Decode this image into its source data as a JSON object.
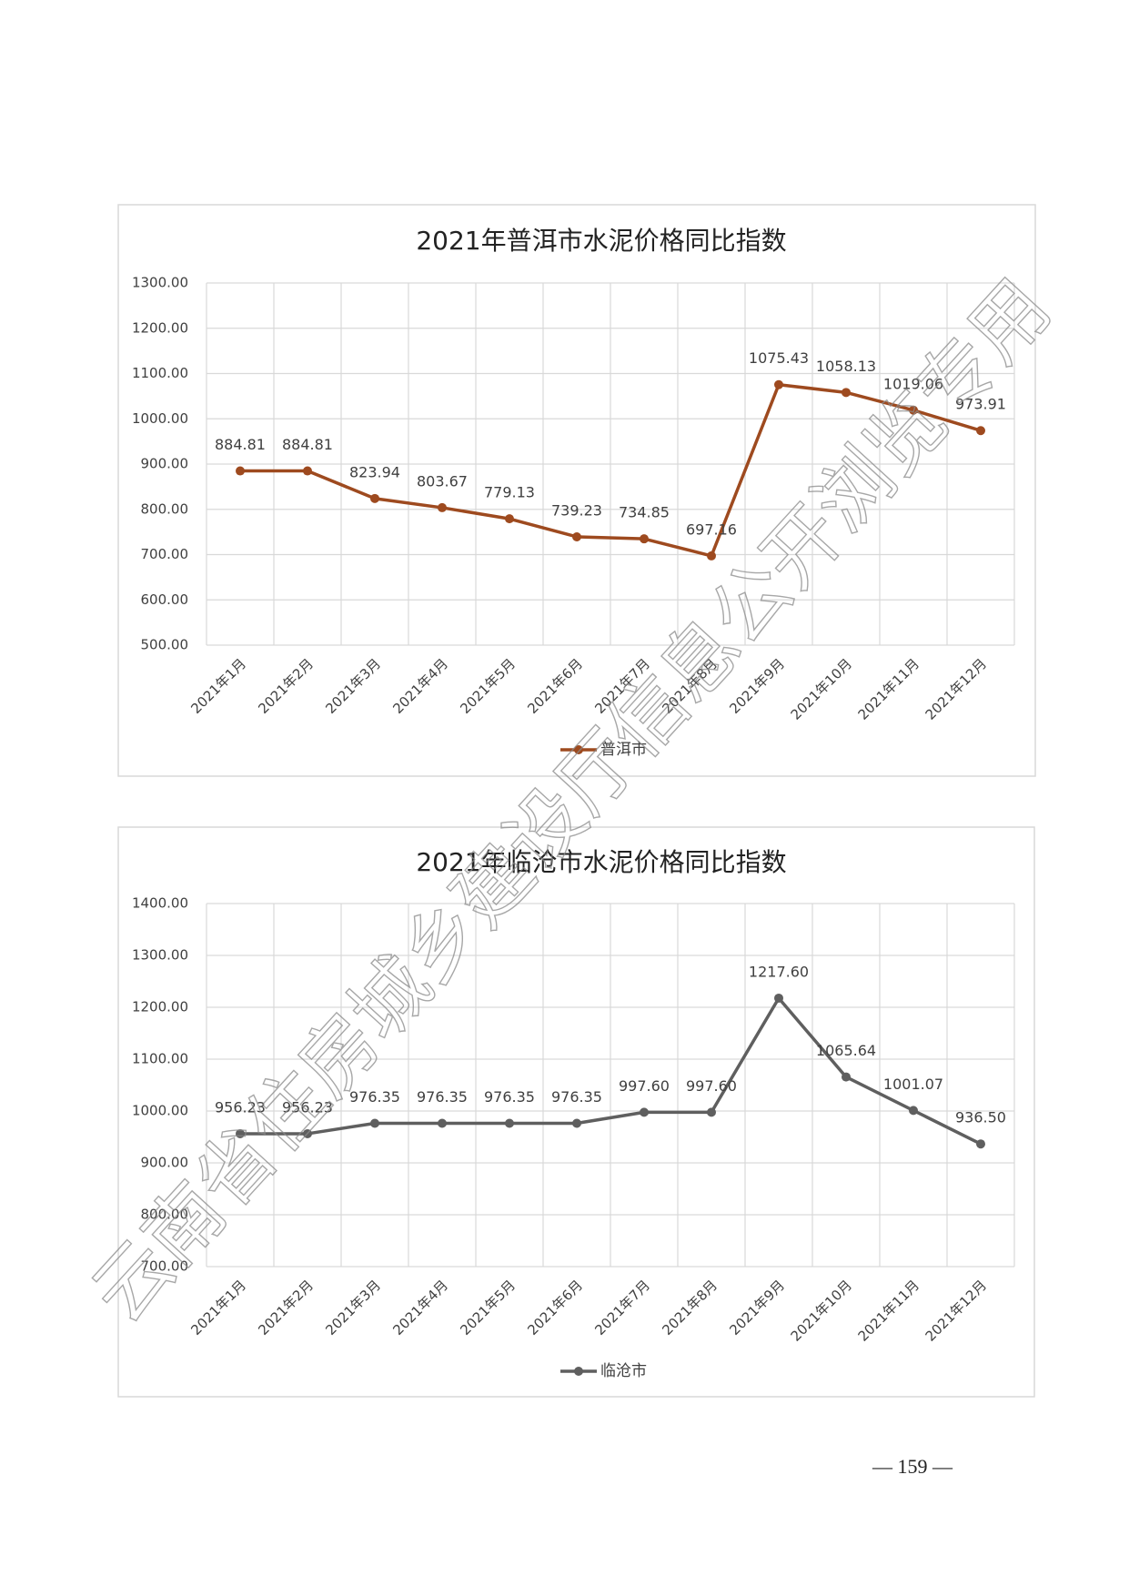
{
  "chart_data": [
    {
      "type": "line",
      "title": "2021年普洱市水泥价格同比指数",
      "categories": [
        "2021年1月",
        "2021年2月",
        "2021年3月",
        "2021年4月",
        "2021年5月",
        "2021年6月",
        "2021年7月",
        "2021年8月",
        "2021年9月",
        "2021年10月",
        "2021年11月",
        "2021年12月"
      ],
      "series": [
        {
          "name": "普洱市",
          "color": "#9e4a1f",
          "values": [
            884.81,
            884.81,
            823.94,
            803.67,
            779.13,
            739.23,
            734.85,
            697.16,
            1075.43,
            1058.13,
            1019.06,
            973.91
          ],
          "value_labels": [
            "884.81",
            "884.81",
            "823.94",
            "803.67",
            "779.13",
            "739.23",
            "734.85",
            "697.16",
            "1075.43",
            "1058.13",
            "1019.06",
            "973.91"
          ]
        }
      ],
      "ylim": [
        500,
        1300
      ],
      "yticks": [
        {
          "value": 500,
          "label": "500.00"
        },
        {
          "value": 600,
          "label": "600.00"
        },
        {
          "value": 700,
          "label": "700.00"
        },
        {
          "value": 800,
          "label": "800.00"
        },
        {
          "value": 900,
          "label": "900.00"
        },
        {
          "value": 1000,
          "label": "1000.00"
        },
        {
          "value": 1100,
          "label": "1100.00"
        },
        {
          "value": 1200,
          "label": "1200.00"
        },
        {
          "value": 1300,
          "label": "1300.00"
        }
      ],
      "grid": true,
      "legend": "bottom"
    },
    {
      "type": "line",
      "title": "2021年临沧市水泥价格同比指数",
      "categories": [
        "2021年1月",
        "2021年2月",
        "2021年3月",
        "2021年4月",
        "2021年5月",
        "2021年6月",
        "2021年7月",
        "2021年8月",
        "2021年9月",
        "2021年10月",
        "2021年11月",
        "2021年12月"
      ],
      "series": [
        {
          "name": "临沧市",
          "color": "#5f5f5f",
          "values": [
            956.23,
            956.23,
            976.35,
            976.35,
            976.35,
            976.35,
            997.6,
            997.6,
            1217.6,
            1065.64,
            1001.07,
            936.5
          ],
          "value_labels": [
            "956.23",
            "956.23",
            "976.35",
            "976.35",
            "976.35",
            "976.35",
            "997.60",
            "997.60",
            "1217.60",
            "1065.64",
            "1001.07",
            "936.50"
          ]
        }
      ],
      "ylim": [
        700,
        1400
      ],
      "yticks": [
        {
          "value": 700,
          "label": "700.00"
        },
        {
          "value": 800,
          "label": "800.00"
        },
        {
          "value": 900,
          "label": "900.00"
        },
        {
          "value": 1000,
          "label": "1000.00"
        },
        {
          "value": 1100,
          "label": "1100.00"
        },
        {
          "value": 1200,
          "label": "1200.00"
        },
        {
          "value": 1300,
          "label": "1300.00"
        },
        {
          "value": 1400,
          "label": "1400.00"
        }
      ],
      "grid": true,
      "legend": "bottom"
    }
  ],
  "watermark": "云南省住房城乡建设厅信息公开浏览专用",
  "page_number": "— 159 —"
}
